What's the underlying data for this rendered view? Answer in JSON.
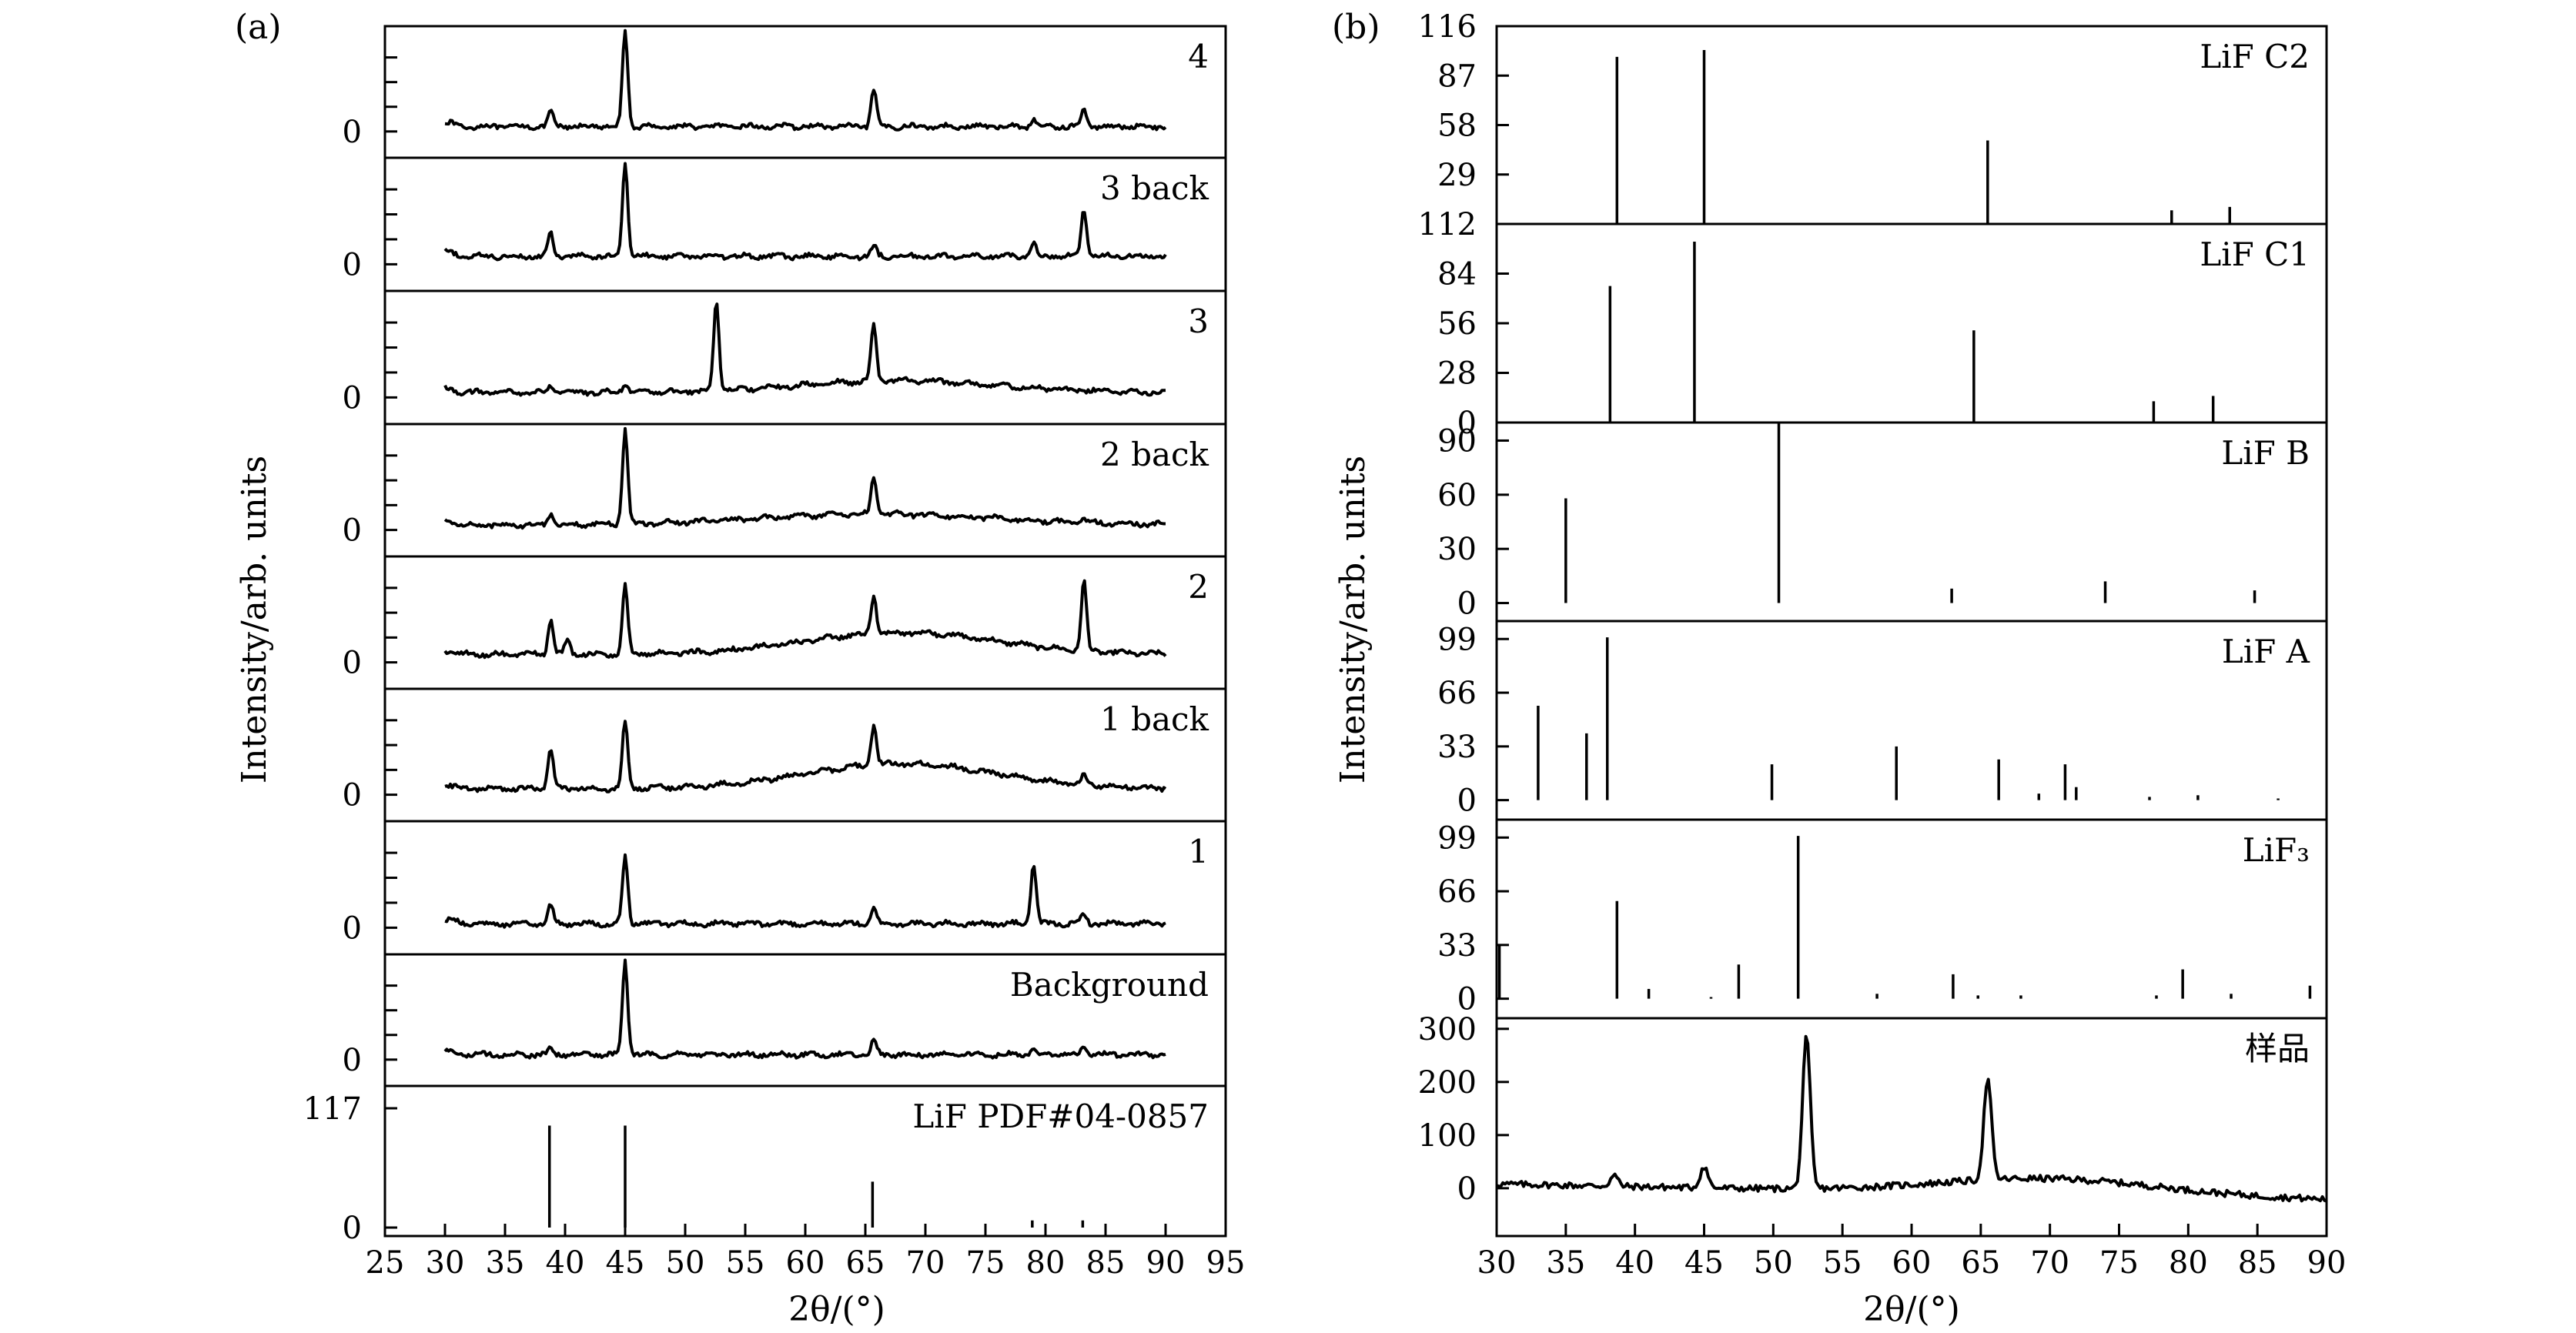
{
  "chart_data": [
    {
      "panel_label": "(a)",
      "type": "line",
      "xlabel": "2θ/(°)",
      "ylabel": "Intensity/arb. units",
      "xlim": [
        25,
        95
      ],
      "xticks": [
        "25",
        "30",
        "35",
        "40",
        "45",
        "50",
        "55",
        "60",
        "65",
        "70",
        "75",
        "80",
        "85",
        "90",
        "95"
      ],
      "x_range_data": [
        30,
        90
      ],
      "subplots": [
        {
          "label": "4",
          "ytick": "0",
          "baseline": 0.05,
          "peaks": [
            [
              38.8,
              0.14
            ],
            [
              45.0,
              0.95
            ],
            [
              65.7,
              0.37
            ],
            [
              79.0,
              0.07
            ],
            [
              83.2,
              0.17
            ]
          ]
        },
        {
          "label": "3 back",
          "ytick": "0",
          "baseline": 0.08,
          "peaks": [
            [
              38.8,
              0.22
            ],
            [
              45.0,
              0.95
            ],
            [
              65.7,
              0.1
            ],
            [
              79.0,
              0.13
            ],
            [
              83.2,
              0.48
            ]
          ]
        },
        {
          "label": "3",
          "ytick": "0",
          "baseline": 0.05,
          "peaks": [
            [
              38.8,
              0.06
            ],
            [
              45.0,
              0.1
            ],
            [
              52.6,
              0.9
            ],
            [
              65.7,
              0.57
            ]
          ],
          "hump": [
            68,
            0.12,
            8
          ]
        },
        {
          "label": "2 back",
          "ytick": "0",
          "baseline": 0.05,
          "peaks": [
            [
              38.8,
              0.12
            ],
            [
              45.0,
              0.95
            ],
            [
              65.7,
              0.37
            ],
            [
              83.2,
              0.04
            ]
          ],
          "hump": [
            66,
            0.11,
            10
          ]
        },
        {
          "label": "2",
          "ytick": "0",
          "baseline": 0.08,
          "peaks": [
            [
              38.8,
              0.35
            ],
            [
              40.2,
              0.15
            ],
            [
              45.0,
              0.7
            ],
            [
              65.7,
              0.38
            ],
            [
              83.2,
              0.7
            ]
          ],
          "hump": [
            68,
            0.22,
            8
          ]
        },
        {
          "label": "1 back",
          "ytick": "0",
          "baseline": 0.06,
          "peaks": [
            [
              38.8,
              0.4
            ],
            [
              45.0,
              0.68
            ],
            [
              65.7,
              0.4
            ],
            [
              83.2,
              0.1
            ]
          ],
          "hump": [
            68,
            0.25,
            8
          ]
        },
        {
          "label": "1",
          "ytick": "0",
          "baseline": 0.04,
          "peaks": [
            [
              38.8,
              0.18
            ],
            [
              45.0,
              0.68
            ],
            [
              65.7,
              0.15
            ],
            [
              79.0,
              0.6
            ],
            [
              83.2,
              0.1
            ]
          ]
        },
        {
          "label": "Background",
          "ytick": "0",
          "baseline": 0.05,
          "peaks": [
            [
              38.8,
              0.05
            ],
            [
              45.0,
              0.95
            ],
            [
              65.7,
              0.15
            ],
            [
              79.0,
              0.04
            ],
            [
              83.2,
              0.08
            ]
          ]
        }
      ],
      "reference": {
        "label": "LiF PDF#04-0857",
        "yticks": [
          "117",
          "0"
        ],
        "ylim": [
          0,
          117
        ],
        "sticks": [
          [
            38.7,
            100
          ],
          [
            45.0,
            100
          ],
          [
            65.6,
            45
          ],
          [
            78.9,
            7
          ],
          [
            83.1,
            7
          ]
        ]
      }
    },
    {
      "panel_label": "(b)",
      "type": "bar",
      "xlabel": "2θ/(°)",
      "ylabel": "Intensity/arb. units",
      "xlim": [
        30,
        90
      ],
      "xticks": [
        "30",
        "35",
        "40",
        "45",
        "50",
        "55",
        "60",
        "65",
        "70",
        "75",
        "80",
        "85",
        "90"
      ],
      "subplots": [
        {
          "label": "LiF C2",
          "yticks": [
            [
              "116",
              116
            ],
            [
              "87",
              87
            ],
            [
              "58",
              58
            ],
            [
              "29",
              29
            ]
          ],
          "ylim": [
            0,
            116
          ],
          "sticks": [
            [
              38.7,
              98
            ],
            [
              45.0,
              102
            ],
            [
              65.5,
              49
            ],
            [
              78.8,
              8
            ],
            [
              83.0,
              10
            ]
          ]
        },
        {
          "label": "LiF C1",
          "yticks": [
            [
              "112",
              112
            ],
            [
              "84",
              84
            ],
            [
              "56",
              56
            ],
            [
              "28",
              28
            ],
            [
              "0",
              0
            ]
          ],
          "ylim": [
            0,
            112
          ],
          "sticks": [
            [
              38.2,
              77
            ],
            [
              44.3,
              102
            ],
            [
              64.5,
              52
            ],
            [
              77.5,
              12
            ],
            [
              81.8,
              15
            ]
          ]
        },
        {
          "label": "LiF B",
          "yticks": [
            [
              "90",
              90
            ],
            [
              "60",
              60
            ],
            [
              "30",
              30
            ],
            [
              "0",
              0
            ]
          ],
          "ylim": [
            -10,
            100
          ],
          "sticks": [
            [
              35.0,
              58
            ],
            [
              50.4,
              100
            ],
            [
              62.9,
              8
            ],
            [
              74.0,
              12
            ],
            [
              84.8,
              7
            ]
          ]
        },
        {
          "label": "LiF A",
          "yticks": [
            [
              "99",
              99
            ],
            [
              "66",
              66
            ],
            [
              "33",
              33
            ],
            [
              "0",
              0
            ]
          ],
          "ylim": [
            -12,
            110
          ],
          "sticks": [
            [
              33.0,
              58
            ],
            [
              36.5,
              41
            ],
            [
              38.0,
              100
            ],
            [
              49.9,
              22
            ],
            [
              58.9,
              33
            ],
            [
              66.3,
              25
            ],
            [
              69.2,
              4
            ],
            [
              71.1,
              22
            ],
            [
              71.9,
              8
            ],
            [
              77.2,
              2
            ],
            [
              80.7,
              3
            ],
            [
              86.5,
              1
            ]
          ]
        },
        {
          "label": "LiF₃",
          "yticks": [
            [
              "99",
              99
            ],
            [
              "66",
              66
            ],
            [
              "33",
              33
            ],
            [
              "0",
              0
            ]
          ],
          "ylim": [
            -12,
            110
          ],
          "sticks": [
            [
              30.2,
              33
            ],
            [
              38.7,
              60
            ],
            [
              41.0,
              6
            ],
            [
              45.5,
              1
            ],
            [
              47.5,
              21
            ],
            [
              51.8,
              100
            ],
            [
              57.5,
              3
            ],
            [
              63.0,
              15
            ],
            [
              64.8,
              2
            ],
            [
              67.9,
              2
            ],
            [
              77.7,
              2
            ],
            [
              79.6,
              18
            ],
            [
              83.1,
              3
            ],
            [
              88.8,
              8
            ]
          ]
        },
        {
          "label": "样品",
          "yticks": [
            [
              "300",
              300
            ],
            [
              "200",
              200
            ],
            [
              "100",
              100
            ],
            [
              "0",
              0
            ]
          ],
          "ylim": [
            -90,
            320
          ],
          "trace": true,
          "baseline": 8,
          "slope": -0.5,
          "peaks": [
            [
              38.5,
              20
            ],
            [
              45.0,
              40
            ],
            [
              52.4,
              285
            ],
            [
              65.5,
              190
            ]
          ],
          "hump": [
            70,
            30,
            8
          ]
        }
      ]
    }
  ]
}
